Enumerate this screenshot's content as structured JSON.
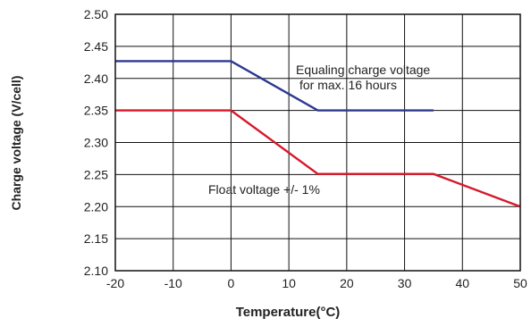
{
  "chart_data": {
    "type": "line",
    "title": "",
    "xlabel": "Temperature(°C)",
    "ylabel": "Charge voltage (V/cell)",
    "xlim": [
      -20,
      50
    ],
    "ylim": [
      2.1,
      2.5
    ],
    "x_ticks": [
      "-20",
      "-10",
      "0",
      "10",
      "20",
      "30",
      "40",
      "50"
    ],
    "y_ticks": [
      "2.50",
      "2.45",
      "2.40",
      "2.35",
      "2.30",
      "2.25",
      "2.20",
      "2.15",
      "2.10"
    ],
    "grid": true,
    "series": [
      {
        "name": "Equaling charge voltage for max. 16 hours",
        "color": "#2b3990",
        "points": [
          [
            -20,
            2.427
          ],
          [
            0,
            2.427
          ],
          [
            15,
            2.35
          ],
          [
            35,
            2.35
          ]
        ]
      },
      {
        "name": "Float voltage +/- 1%",
        "color": "#d7182a",
        "points": [
          [
            -20,
            2.35
          ],
          [
            0,
            2.35
          ],
          [
            15,
            2.251
          ],
          [
            35,
            2.251
          ],
          [
            50,
            2.2
          ]
        ]
      }
    ],
    "annotations": [
      {
        "lines": [
          "Equaling charge voltage",
          "for max. 16 hours"
        ],
        "series": 0
      },
      {
        "lines": [
          "Float voltage +/- 1%"
        ],
        "series": 1
      }
    ]
  }
}
